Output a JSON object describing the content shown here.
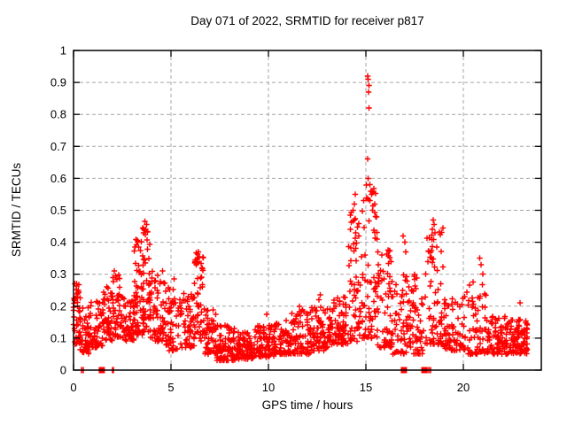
{
  "figure": {
    "title": "Day 071 of 2022, SRMTID for receiver p817",
    "xlabel": "GPS time / hours",
    "ylabel": "SRMTID / TECUs"
  },
  "chart_data": {
    "type": "scatter",
    "title": "Day 071 of 2022, SRMTID for receiver p817",
    "xlabel": "GPS time / hours",
    "ylabel": "SRMTID / TECUs",
    "xlim": [
      0,
      24
    ],
    "ylim": [
      0,
      1
    ],
    "xticks": [
      0,
      5,
      10,
      15,
      20
    ],
    "yticks": [
      0,
      0.1,
      0.2,
      0.3,
      0.4,
      0.5,
      0.6,
      0.7,
      0.8,
      0.9,
      1
    ],
    "grid": true,
    "legend": "none",
    "marker": "plus",
    "marker_color": "#ff0000",
    "grid_color": "#a6a6a6",
    "axis_color": "#000000",
    "background": "#ffffff",
    "description": "Dense scatter of SRMTID values vs GPS time; baseline 0.05-0.2 TECU with activity peaks near 3.8 h (0.46), 6.4 h (0.37), 15.1 h (0.92 max), 18.5 h (0.47), 20.9 h (0.35); a few zero-valued samples near 0.5, 1.5, 2, 17 and 18 h.",
    "density_bands": [
      [
        0.0,
        0.35,
        0.08,
        0.27,
        55,
        1.2
      ],
      [
        0.35,
        0.8,
        0.05,
        0.2,
        40,
        1.5
      ],
      [
        0.8,
        1.5,
        0.07,
        0.22,
        55,
        1.4
      ],
      [
        1.5,
        2.0,
        0.09,
        0.26,
        45,
        1.4
      ],
      [
        2.0,
        2.5,
        0.1,
        0.31,
        45,
        1.5
      ],
      [
        2.5,
        3.1,
        0.09,
        0.24,
        50,
        1.4
      ],
      [
        3.1,
        3.6,
        0.11,
        0.41,
        60,
        1.5
      ],
      [
        3.55,
        3.95,
        0.12,
        0.46,
        50,
        1.5
      ],
      [
        3.95,
        4.7,
        0.09,
        0.31,
        60,
        1.6
      ],
      [
        4.7,
        5.5,
        0.06,
        0.26,
        55,
        1.7
      ],
      [
        5.5,
        6.2,
        0.07,
        0.26,
        55,
        1.6
      ],
      [
        6.2,
        6.7,
        0.09,
        0.37,
        50,
        1.6
      ],
      [
        6.7,
        7.3,
        0.05,
        0.2,
        50,
        1.6
      ],
      [
        7.3,
        8.3,
        0.03,
        0.14,
        90,
        1.6
      ],
      [
        8.3,
        9.3,
        0.035,
        0.12,
        90,
        1.5
      ],
      [
        9.3,
        10.3,
        0.04,
        0.14,
        80,
        1.6
      ],
      [
        10.3,
        11.2,
        0.05,
        0.16,
        75,
        1.6
      ],
      [
        11.2,
        12.2,
        0.05,
        0.19,
        80,
        1.6
      ],
      [
        12.2,
        13.2,
        0.06,
        0.2,
        80,
        1.6
      ],
      [
        13.2,
        14.1,
        0.08,
        0.23,
        75,
        1.5
      ],
      [
        14.1,
        14.7,
        0.09,
        0.5,
        55,
        1.8
      ],
      [
        14.7,
        15.6,
        0.1,
        0.58,
        75,
        1.8
      ],
      [
        15.6,
        16.3,
        0.07,
        0.38,
        55,
        1.8
      ],
      [
        16.3,
        17.1,
        0.05,
        0.3,
        55,
        1.7
      ],
      [
        17.1,
        18.1,
        0.05,
        0.32,
        70,
        1.7
      ],
      [
        18.1,
        19.0,
        0.08,
        0.45,
        70,
        1.6
      ],
      [
        19.0,
        20.0,
        0.06,
        0.23,
        70,
        1.6
      ],
      [
        20.0,
        21.2,
        0.05,
        0.28,
        70,
        1.8
      ],
      [
        21.2,
        22.3,
        0.05,
        0.17,
        85,
        1.5
      ],
      [
        22.3,
        23.3,
        0.05,
        0.16,
        90,
        1.4
      ]
    ],
    "peak_points": [
      [
        0.15,
        0.27
      ],
      [
        2.1,
        0.31
      ],
      [
        2.15,
        0.295
      ],
      [
        3.3,
        0.4
      ],
      [
        3.35,
        0.385
      ],
      [
        3.55,
        0.445
      ],
      [
        3.6,
        0.43
      ],
      [
        3.65,
        0.465
      ],
      [
        3.7,
        0.44
      ],
      [
        3.75,
        0.455
      ],
      [
        5.15,
        0.285
      ],
      [
        6.3,
        0.33
      ],
      [
        6.35,
        0.345
      ],
      [
        6.4,
        0.37
      ],
      [
        6.45,
        0.355
      ],
      [
        9.9,
        0.175
      ],
      [
        11.6,
        0.2
      ],
      [
        12.6,
        0.22
      ],
      [
        12.65,
        0.235
      ],
      [
        14.2,
        0.44
      ],
      [
        14.35,
        0.5
      ],
      [
        14.4,
        0.52
      ],
      [
        14.45,
        0.55
      ],
      [
        14.42,
        0.47
      ],
      [
        15.1,
        0.92
      ],
      [
        15.12,
        0.91
      ],
      [
        15.15,
        0.89
      ],
      [
        15.13,
        0.87
      ],
      [
        15.15,
        0.82
      ],
      [
        15.1,
        0.66
      ],
      [
        15.12,
        0.6
      ],
      [
        15.2,
        0.58
      ],
      [
        15.25,
        0.56
      ],
      [
        15.3,
        0.55
      ],
      [
        15.2,
        0.53
      ],
      [
        15.35,
        0.5
      ],
      [
        16.9,
        0.42
      ],
      [
        17.0,
        0.4
      ],
      [
        17.05,
        0.37
      ],
      [
        18.4,
        0.44
      ],
      [
        18.45,
        0.47
      ],
      [
        18.5,
        0.455
      ],
      [
        18.55,
        0.43
      ],
      [
        20.85,
        0.35
      ],
      [
        20.9,
        0.33
      ],
      [
        21.0,
        0.3
      ],
      [
        22.9,
        0.21
      ]
    ],
    "zero_marks": {
      "bars": [
        0.42,
        0.5,
        1.98,
        2.06,
        18.15,
        18.22,
        18.3
      ],
      "squares": [
        1.45,
        16.95,
        18.0
      ]
    }
  }
}
